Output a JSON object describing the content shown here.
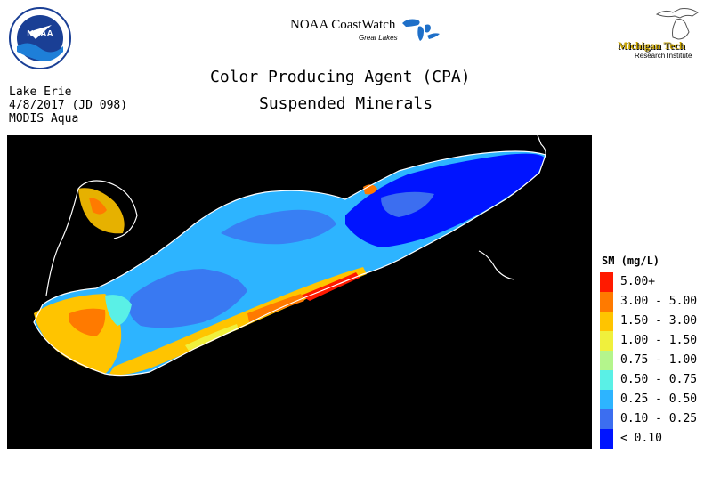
{
  "header": {
    "noaa_logo_text": "NOAA",
    "coastwatch_title": "NOAA CoastWatch",
    "coastwatch_subtitle": "Great Lakes",
    "mtu_name": "Michigan Tech",
    "mtu_subtitle": "Research Institute"
  },
  "titles": {
    "line1": "Color Producing Agent (CPA)",
    "line2": "Suspended Minerals"
  },
  "meta": {
    "lake": "Lake Erie",
    "date": "4/8/2017 (JD 098)",
    "sensor": "MODIS Aqua"
  },
  "map": {
    "background_color": "#000000",
    "shoreline_color": "#ffffff"
  },
  "legend": {
    "title": "SM (mg/L)",
    "items": [
      {
        "label": "5.00+",
        "color": "#ff1a00"
      },
      {
        "label": "3.00 - 5.00",
        "color": "#ff7a00"
      },
      {
        "label": "1.50 - 3.00",
        "color": "#ffc400"
      },
      {
        "label": "1.00 - 1.50",
        "color": "#f0f03c"
      },
      {
        "label": "0.75 - 1.00",
        "color": "#b4f58c"
      },
      {
        "label": "0.50 - 0.75",
        "color": "#5af0e6"
      },
      {
        "label": "0.25 - 0.50",
        "color": "#2db4ff"
      },
      {
        "label": "0.10 - 0.25",
        "color": "#3c6ef0"
      },
      {
        "label": "< 0.10",
        "color": "#0014ff"
      }
    ]
  }
}
